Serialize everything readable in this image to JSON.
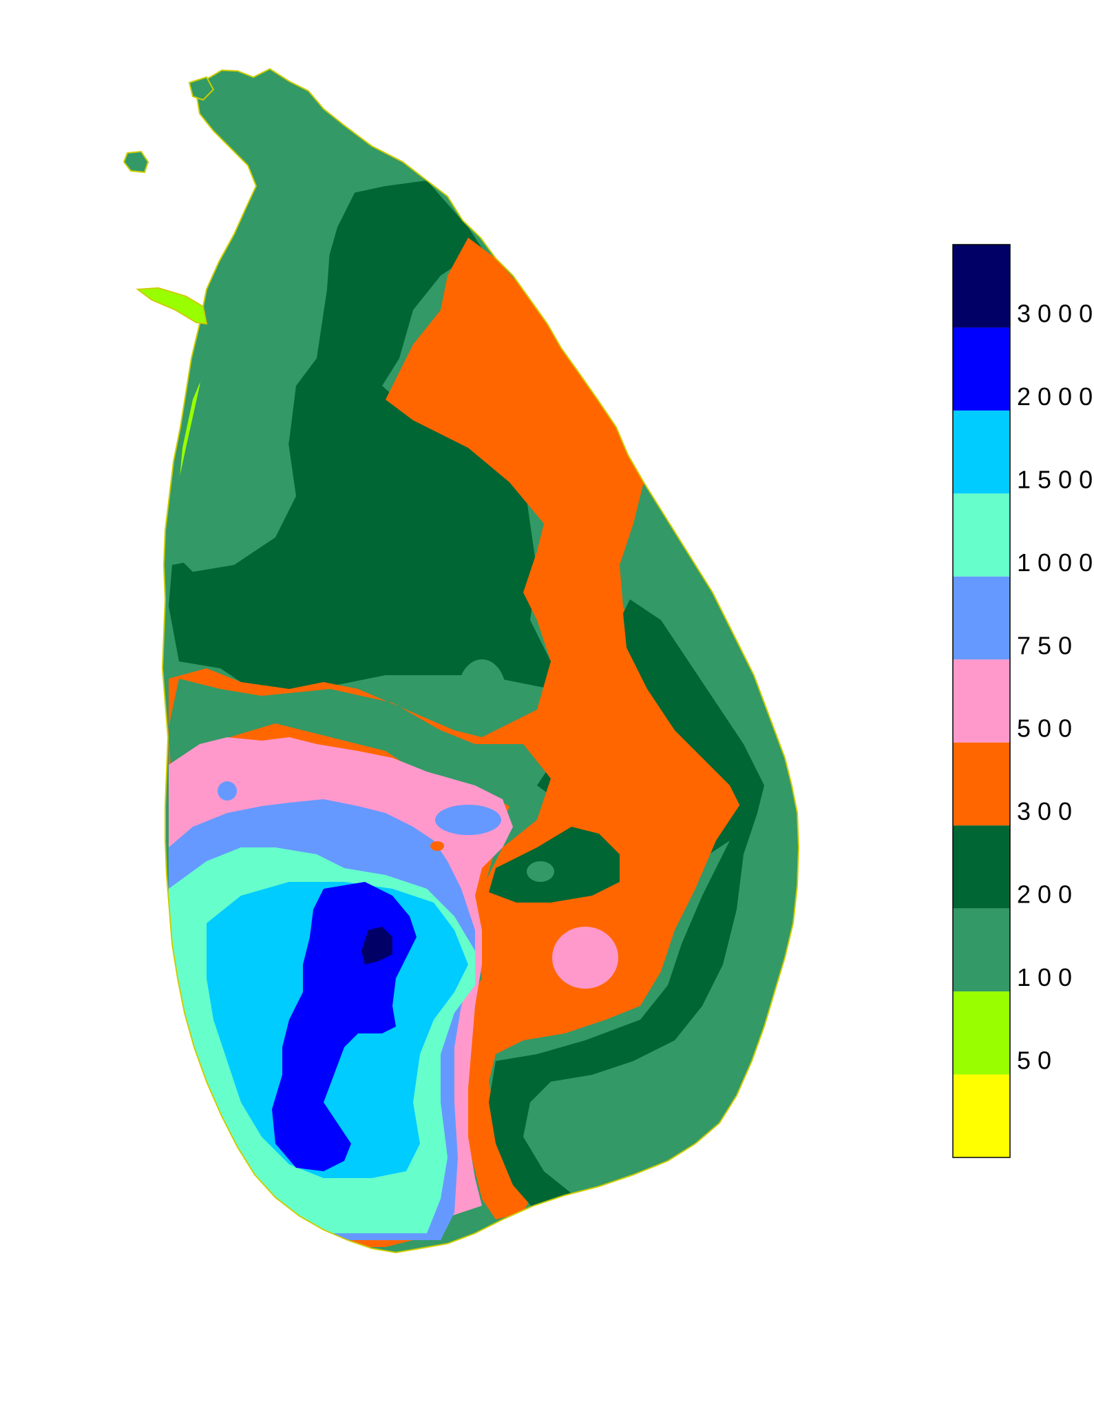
{
  "legend": {
    "labels": [
      "3000",
      "2000",
      "1500",
      "1000",
      "750",
      "500",
      "300",
      "200",
      "100",
      "50"
    ],
    "colors": [
      "#000066",
      "#0000ff",
      "#00ccff",
      "#66ffcc",
      "#6699ff",
      "#ff99cc",
      "#ff6600",
      "#006633",
      "#339966",
      "#99ff00",
      "#ffff00"
    ]
  },
  "map": {
    "palette": {
      "c50": "#ffff00",
      "c100": "#99ff00",
      "c200": "#339966",
      "c300": "#006633",
      "c500": "#ff6600",
      "c750": "#ff99cc",
      "c1000": "#6699ff",
      "c1500": "#66ffcc",
      "c2000": "#00ccff",
      "c3000": "#0000ff",
      "cmax": "#000066"
    }
  }
}
